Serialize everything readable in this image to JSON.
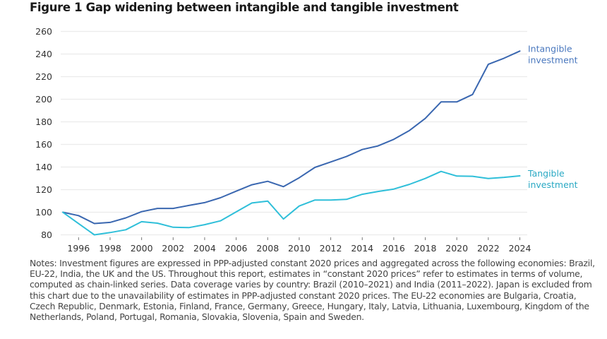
{
  "figure": {
    "title": "Figure 1 Gap widening between intangible and tangible investment",
    "notes": "Notes: Investment figures are expressed in PPP-adjusted constant 2020 prices and aggregated across the following economies: Brazil, EU-22, India, the UK and the US. Throughout this report, estimates in “constant 2020 prices” refer to estimates in terms of volume, computed as chain-linked series. Data coverage varies by country: Brazil (2010–2021) and India (2011–2022). Japan is excluded from this chart due to the unavailability of estimates in PPP-adjusted constant 2020 prices. The EU-22 economies are Bulgaria, Croatia, Czech Republic, Denmark, Estonia, Finland, France, Germany, Greece, Hungary, Italy, Latvia, Lithuania, Luxembourg, Kingdom of the Netherlands, Poland, Portugal, Romania, Slovakia, Slovenia, Spain and Sweden."
  },
  "chart_data": {
    "type": "line",
    "title": "Figure 1 Gap widening between intangible and tangible investment",
    "xlabel": "",
    "ylabel": "",
    "x": [
      1995,
      1996,
      1997,
      1998,
      1999,
      2000,
      2001,
      2002,
      2003,
      2004,
      2005,
      2006,
      2007,
      2008,
      2009,
      2010,
      2011,
      2012,
      2013,
      2014,
      2015,
      2016,
      2017,
      2018,
      2019,
      2020,
      2021,
      2022,
      2023,
      2024
    ],
    "xticks": [
      1996,
      1998,
      2000,
      2002,
      2004,
      2006,
      2008,
      2010,
      2012,
      2014,
      2016,
      2018,
      2020,
      2022,
      2024
    ],
    "xticklabels": [
      "1996",
      "1998",
      "2000",
      "2002",
      "2004",
      "2006",
      "2008",
      "2010",
      "2012",
      "2014",
      "2016",
      "2018",
      "2020",
      "2022",
      "2024"
    ],
    "xlim": [
      1995,
      2024
    ],
    "ylim": [
      80,
      260
    ],
    "yticks": [
      80,
      100,
      120,
      140,
      160,
      180,
      200,
      220,
      240,
      260
    ],
    "yticklabels": [
      "80",
      "100",
      "120",
      "140",
      "160",
      "180",
      "200",
      "220",
      "240",
      "260"
    ],
    "grid": "horizontal",
    "legend": "direct labels at right end of lines",
    "series": [
      {
        "name": "Intangible investment",
        "label_lines": [
          "Intangible",
          "investment"
        ],
        "color": "#3a67b0",
        "label_color": "#4a78be",
        "values": [
          100,
          97,
          90,
          91,
          95,
          100.5,
          103.4,
          103.4,
          106,
          108.5,
          112.8,
          118.6,
          124.3,
          127.4,
          122.6,
          130.5,
          139.7,
          144.5,
          149.3,
          155.5,
          158.7,
          164.5,
          172.4,
          183,
          197.6,
          197.6,
          204.2,
          230.9,
          236.3,
          242.6
        ]
      },
      {
        "name": "Tangible investment",
        "label_lines": [
          "Tangible",
          "investment"
        ],
        "color": "#2fbfd9",
        "label_color": "#2aa9c4",
        "values": [
          100,
          90,
          80,
          82,
          84.5,
          91.6,
          90.3,
          86.7,
          86.4,
          89,
          92.4,
          100.3,
          108.2,
          109.9,
          94,
          105.5,
          110.8,
          110.8,
          111.4,
          115.9,
          118.4,
          120.5,
          124.7,
          129.9,
          136.1,
          132,
          131.8,
          129.9,
          130.9,
          132.2
        ]
      }
    ]
  }
}
